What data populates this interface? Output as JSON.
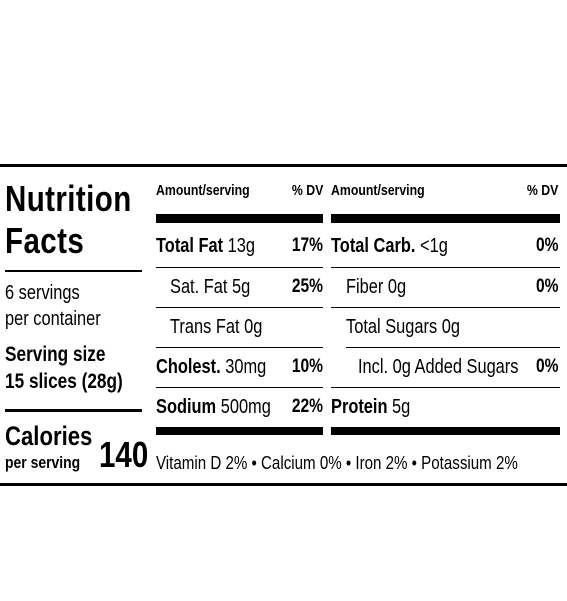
{
  "title": {
    "line1": "Nutrition",
    "line2": "Facts"
  },
  "servings": {
    "line1": "6 servings",
    "line2": "per container"
  },
  "serving_size": {
    "label": "Serving size",
    "value": "15 slices (28g)"
  },
  "calories": {
    "label": "Calories",
    "sublabel": "per serving",
    "value": "140"
  },
  "header": {
    "amount": "Amount/serving",
    "dv": "% DV"
  },
  "left_rows": [
    {
      "name": "Total Fat",
      "amount": " 13g",
      "dv": "17%"
    },
    {
      "name": "Sat. Fat 5g",
      "amount": "",
      "dv": "25%"
    },
    {
      "name": "Trans Fat 0g",
      "amount": "",
      "dv": ""
    },
    {
      "name": "Cholest.",
      "amount": " 30mg",
      "dv": "10%"
    },
    {
      "name": "Sodium",
      "amount": " 500mg",
      "dv": "22%"
    }
  ],
  "right_rows": [
    {
      "name": "Total Carb.",
      "amount": " <1g",
      "dv": "0%"
    },
    {
      "name": "Fiber 0g",
      "amount": "",
      "dv": "0%"
    },
    {
      "name": "Total Sugars 0g",
      "amount": "",
      "dv": ""
    },
    {
      "name": "Incl. 0g Added Sugars",
      "amount": "",
      "dv": "0%"
    },
    {
      "name": "Protein",
      "amount": " 5g",
      "dv": ""
    }
  ],
  "footer": "Vitamin D 2% • Calcium 0% • Iron 2% • Potassium 2%"
}
